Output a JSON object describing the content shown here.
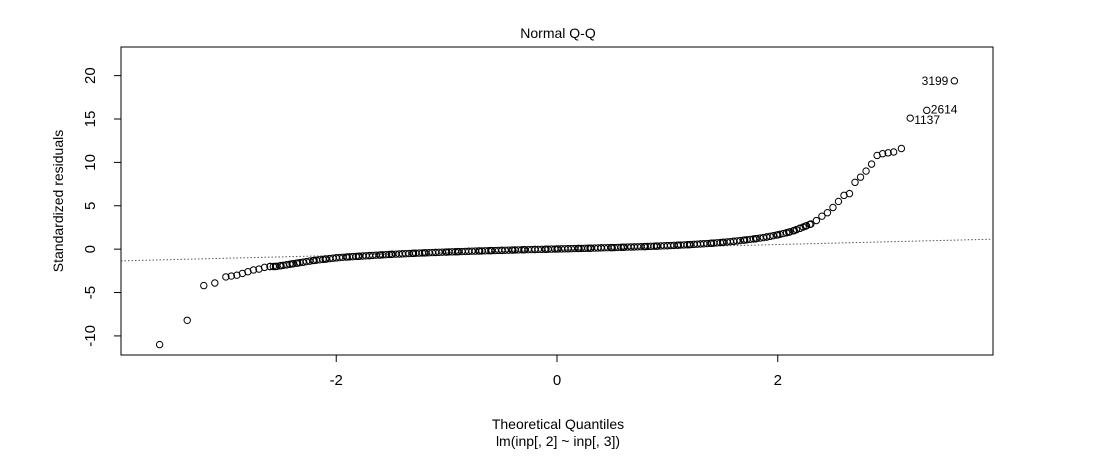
{
  "chart_data": {
    "type": "scatter",
    "title": "Normal Q-Q",
    "xlabel": "Theoretical Quantiles",
    "subtitle": "lm(inp[, 2] ~ inp[, 3])",
    "ylabel": "Standardized residuals",
    "xlim": [
      -3.95,
      3.95
    ],
    "ylim": [
      -12.2,
      23.3
    ],
    "x_ticks": [
      -2,
      0,
      2
    ],
    "y_ticks": [
      -10,
      -5,
      0,
      5,
      10,
      15,
      20
    ],
    "grid": false,
    "legend": "none",
    "reference_line": {
      "style": "dotted",
      "points": [
        [
          -3.95,
          -1.35
        ],
        [
          3.95,
          1.15
        ]
      ]
    },
    "labeled_points": [
      {
        "label": "3199",
        "x": 3.6,
        "y": 19.4
      },
      {
        "label": "2614",
        "x": 3.35,
        "y": 16.0
      },
      {
        "label": "1137",
        "x": 3.2,
        "y": 15.1
      }
    ],
    "series": [
      {
        "points": [
          [
            -3.6,
            -11.0
          ],
          [
            -3.35,
            -8.2
          ],
          [
            -3.2,
            -4.2
          ],
          [
            -3.1,
            -3.9
          ],
          [
            -3.0,
            -3.2
          ],
          [
            -2.95,
            -3.1
          ],
          [
            -2.9,
            -3.0
          ],
          [
            -2.85,
            -2.8
          ],
          [
            -2.8,
            -2.6
          ],
          [
            -2.75,
            -2.4
          ],
          [
            -2.7,
            -2.3
          ],
          [
            -2.65,
            -2.1
          ],
          [
            -2.6,
            -2.0
          ],
          [
            -2.55,
            -2.0
          ],
          [
            -2.5,
            -1.9
          ],
          [
            -2.45,
            -1.8
          ],
          [
            -2.4,
            -1.7
          ],
          [
            -2.35,
            -1.6
          ],
          [
            -2.3,
            -1.5
          ],
          [
            -2.2,
            -1.3
          ],
          [
            -2.1,
            -1.15
          ],
          [
            -2.0,
            -1.0
          ],
          [
            -1.9,
            -0.9
          ],
          [
            -1.8,
            -0.82
          ],
          [
            -1.7,
            -0.74
          ],
          [
            -1.6,
            -0.67
          ],
          [
            -1.5,
            -0.6
          ],
          [
            -1.4,
            -0.54
          ],
          [
            -1.3,
            -0.48
          ],
          [
            -1.2,
            -0.43
          ],
          [
            -1.1,
            -0.38
          ],
          [
            -1.0,
            -0.33
          ],
          [
            -0.9,
            -0.29
          ],
          [
            -0.8,
            -0.25
          ],
          [
            -0.7,
            -0.21
          ],
          [
            -0.6,
            -0.17
          ],
          [
            -0.5,
            -0.14
          ],
          [
            -0.4,
            -0.1
          ],
          [
            -0.3,
            -0.07
          ],
          [
            -0.2,
            -0.04
          ],
          [
            -0.1,
            -0.01
          ],
          [
            0.0,
            0.02
          ],
          [
            0.1,
            0.05
          ],
          [
            0.2,
            0.08
          ],
          [
            0.3,
            0.11
          ],
          [
            0.4,
            0.15
          ],
          [
            0.5,
            0.18
          ],
          [
            0.6,
            0.22
          ],
          [
            0.7,
            0.26
          ],
          [
            0.8,
            0.3
          ],
          [
            0.9,
            0.35
          ],
          [
            1.0,
            0.4
          ],
          [
            1.1,
            0.46
          ],
          [
            1.2,
            0.52
          ],
          [
            1.3,
            0.6
          ],
          [
            1.4,
            0.68
          ],
          [
            1.5,
            0.78
          ],
          [
            1.6,
            0.9
          ],
          [
            1.7,
            1.05
          ],
          [
            1.8,
            1.2
          ],
          [
            1.9,
            1.4
          ],
          [
            2.0,
            1.65
          ],
          [
            2.1,
            1.95
          ],
          [
            2.15,
            2.15
          ],
          [
            2.2,
            2.4
          ],
          [
            2.25,
            2.65
          ],
          [
            2.3,
            2.9
          ],
          [
            2.35,
            3.3
          ],
          [
            2.4,
            3.8
          ],
          [
            2.45,
            4.2
          ],
          [
            2.5,
            4.8
          ],
          [
            2.55,
            5.5
          ],
          [
            2.6,
            6.2
          ],
          [
            2.65,
            6.4
          ],
          [
            2.7,
            7.7
          ],
          [
            2.75,
            8.3
          ],
          [
            2.8,
            9.0
          ],
          [
            2.85,
            9.8
          ],
          [
            2.9,
            10.8
          ],
          [
            2.95,
            11.0
          ],
          [
            3.0,
            11.1
          ],
          [
            3.05,
            11.2
          ],
          [
            3.12,
            11.6
          ],
          [
            3.2,
            15.1
          ],
          [
            3.35,
            16.0
          ],
          [
            3.6,
            19.4
          ]
        ]
      }
    ]
  }
}
